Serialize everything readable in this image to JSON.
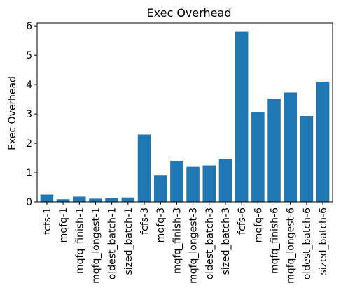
{
  "chart_data": {
    "type": "bar",
    "title": "Exec Overhead",
    "xlabel": "",
    "ylabel": "Exec Overhead",
    "categories": [
      "fcfs-1",
      "mqfq-1",
      "mqfq_finish-1",
      "mqfq_longest-1",
      "oldest_batch-1",
      "sized_batch-1",
      "fcfs-3",
      "mqfq-3",
      "mqfq_finish-3",
      "mqfq_longest-3",
      "oldest_batch-3",
      "sized_batch-3",
      "fcfs-6",
      "mqfq-6",
      "mqfq_finish-6",
      "mqfq_longest-6",
      "oldest_batch-6",
      "sized_batch-6"
    ],
    "values": [
      0.25,
      0.09,
      0.18,
      0.11,
      0.13,
      0.15,
      2.3,
      0.9,
      1.4,
      1.2,
      1.25,
      1.47,
      5.8,
      3.07,
      3.52,
      3.73,
      2.93,
      4.1
    ],
    "yticks": [
      0,
      1,
      2,
      3,
      4,
      5,
      6
    ],
    "ylim": [
      0,
      6.1
    ],
    "grid": false,
    "bar_color": "#1f77b4"
  }
}
